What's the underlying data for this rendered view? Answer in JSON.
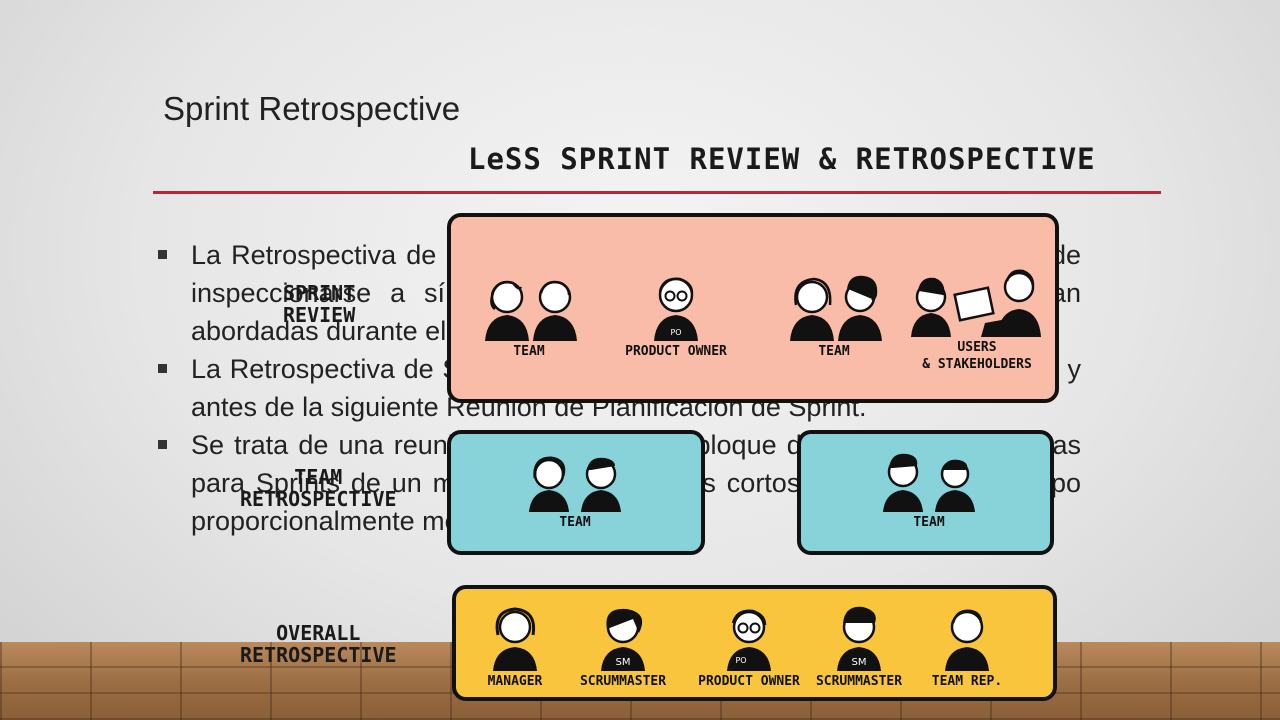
{
  "slide": {
    "title": "Sprint Retrospective",
    "bullets": [
      "La Retrospectiva de Sprint es una oportunidad para el Equipo Scrum de inspeccionarse a sí mismo y crear un plan de mejoras que sean abordadas durante el siguiente Sprint.",
      "La Retrospectiva de Sprint tiene lugar después de la Revisión de Sprint y antes de la siguiente Reunión de Planificación de Sprint.",
      "Se trata de una reunión restringida a un bloque de tiempo de tres horas para Sprints de un mes. Para Sprints más cortos, se reserva un tiempo proporcionalmente menor."
    ]
  },
  "overlay": {
    "title": "LeSS SPRINT REVIEW & RETROSPECTIVE",
    "sprint_review": {
      "label_line1": "SPRINT",
      "label_line2": "REVIEW",
      "groups": [
        {
          "caption": "TEAM"
        },
        {
          "caption": "PRODUCT OWNER"
        },
        {
          "caption": "TEAM"
        },
        {
          "caption_line1": "USERS",
          "caption_line2": "& STAKEHOLDERS"
        }
      ]
    },
    "team_retrospective": {
      "label_line1": "TEAM",
      "label_line2": "RETROSPECTIVE",
      "groups": [
        {
          "caption": "TEAM"
        },
        {
          "caption": "TEAM"
        }
      ]
    },
    "overall_retrospective": {
      "label_line1": "OVERALL",
      "label_line2": "RETROSPECTIVE",
      "groups": [
        {
          "caption": "MANAGER"
        },
        {
          "caption": "SCRUMMASTER",
          "shirt_mark": "SM"
        },
        {
          "caption": "PRODUCT OWNER",
          "shirt_mark": "PO"
        },
        {
          "caption": "SCRUMMASTER",
          "shirt_mark": "SM"
        },
        {
          "caption": "TEAM REP."
        }
      ]
    },
    "colors": {
      "pink": "#f9bca8",
      "cyan": "#88d2d9",
      "yellow": "#f9c53c",
      "rule": "#b5283c"
    }
  }
}
